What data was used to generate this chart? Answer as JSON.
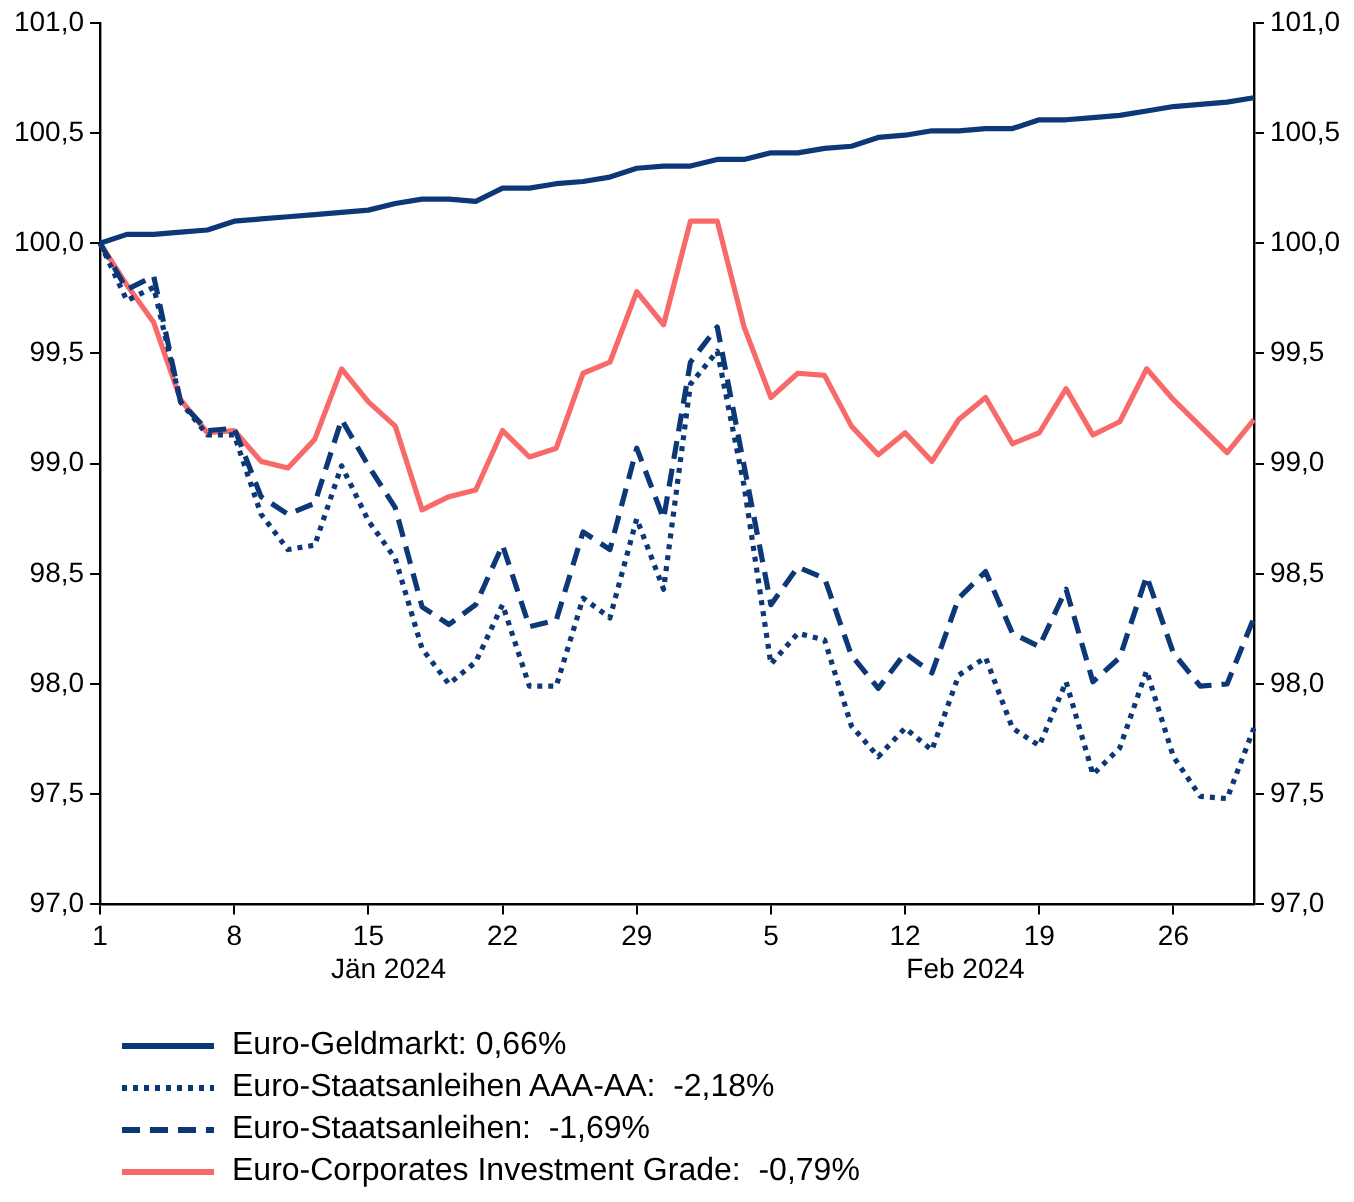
{
  "chart_data": {
    "type": "line",
    "categories": [
      "1",
      null,
      null,
      null,
      null,
      "8",
      null,
      null,
      null,
      null,
      "15",
      null,
      null,
      null,
      null,
      "22",
      null,
      null,
      null,
      null,
      "29",
      null,
      null,
      null,
      null,
      "5",
      null,
      null,
      null,
      null,
      "12",
      null,
      null,
      null,
      null,
      "19",
      null,
      null,
      null,
      null,
      "26",
      null,
      null,
      null
    ],
    "series": [
      {
        "name": "Euro-Geldmarkt: 0,66%",
        "color": "#0d3878",
        "line_style": "solid",
        "values": [
          100.0,
          100.04,
          100.04,
          100.05,
          100.06,
          100.1,
          100.11,
          100.12,
          100.13,
          100.14,
          100.15,
          100.18,
          100.2,
          100.2,
          100.19,
          100.25,
          100.25,
          100.27,
          100.28,
          100.3,
          100.34,
          100.35,
          100.35,
          100.38,
          100.38,
          100.41,
          100.41,
          100.43,
          100.44,
          100.48,
          100.49,
          100.51,
          100.51,
          100.52,
          100.52,
          100.56,
          100.56,
          100.57,
          100.58,
          100.6,
          100.62,
          100.63,
          100.64,
          100.66
        ]
      },
      {
        "name": "Euro-Staatsanleihen AAA-AA:  -2,18%",
        "color": "#0d3878",
        "line_style": "dotted",
        "values": [
          100.0,
          99.74,
          99.8,
          99.28,
          99.13,
          99.13,
          98.77,
          98.61,
          98.63,
          98.99,
          98.74,
          98.57,
          98.16,
          98.0,
          98.1,
          98.36,
          97.99,
          97.99,
          98.39,
          98.3,
          98.75,
          98.43,
          99.36,
          99.51,
          98.9,
          98.09,
          98.23,
          98.2,
          97.81,
          97.67,
          97.8,
          97.7,
          98.04,
          98.12,
          97.8,
          97.72,
          98.01,
          97.59,
          97.71,
          98.06,
          97.67,
          97.49,
          97.48,
          97.8
        ]
      },
      {
        "name": "Euro-Staatsanleihen:  -1,69%",
        "color": "#0d3878",
        "line_style": "dashed",
        "values": [
          100.0,
          99.79,
          99.85,
          99.28,
          99.15,
          99.16,
          98.85,
          98.77,
          98.82,
          99.2,
          98.99,
          98.8,
          98.35,
          98.27,
          98.36,
          98.63,
          98.26,
          98.29,
          98.69,
          98.61,
          99.07,
          98.75,
          99.46,
          99.62,
          98.99,
          98.36,
          98.53,
          98.48,
          98.13,
          97.98,
          98.14,
          98.05,
          98.39,
          98.51,
          98.23,
          98.17,
          98.43,
          98.01,
          98.12,
          98.49,
          98.14,
          97.99,
          98.0,
          98.3
        ]
      },
      {
        "name": "Euro-Corporates Investment Grade:  -0,79%",
        "color": "#f86a6a",
        "line_style": "solid",
        "values": [
          100.0,
          99.81,
          99.64,
          99.29,
          99.14,
          99.15,
          99.01,
          98.98,
          99.11,
          99.43,
          99.28,
          99.17,
          98.79,
          98.85,
          98.88,
          99.15,
          99.03,
          99.07,
          99.41,
          99.46,
          99.78,
          99.63,
          100.1,
          100.1,
          99.62,
          99.3,
          99.41,
          99.4,
          99.17,
          99.04,
          99.14,
          99.01,
          99.2,
          99.3,
          99.09,
          99.14,
          99.34,
          99.13,
          99.19,
          99.43,
          99.29,
          99.17,
          99.05,
          99.2
        ]
      }
    ],
    "ylim": [
      97,
      101
    ],
    "yticks": [
      {
        "value": 97,
        "label": "97,0"
      },
      {
        "value": 97.5,
        "label": "97,5"
      },
      {
        "value": 98,
        "label": "98,0"
      },
      {
        "value": 98.5,
        "label": "98,5"
      },
      {
        "value": 99,
        "label": "99,0"
      },
      {
        "value": 99.5,
        "label": "99,5"
      },
      {
        "value": 100,
        "label": "100,0"
      },
      {
        "value": 100.5,
        "label": "100,5"
      },
      {
        "value": 101,
        "label": "101,0"
      }
    ],
    "y2lim": [
      97,
      101
    ],
    "y2ticks": [
      {
        "value": 97,
        "label": "97,0"
      },
      {
        "value": 97.5,
        "label": "97,5"
      },
      {
        "value": 98,
        "label": "98,0"
      },
      {
        "value": 98.5,
        "label": "98,5"
      },
      {
        "value": 99,
        "label": "99,0"
      },
      {
        "value": 99.5,
        "label": "99,5"
      },
      {
        "value": 100,
        "label": "100,0"
      },
      {
        "value": 100.5,
        "label": "100,5"
      },
      {
        "value": 101,
        "label": "101,0"
      }
    ],
    "annotations": [
      "Jän 2024",
      "Feb 2024"
    ],
    "grid": false,
    "marker": "none",
    "legend": "bottom"
  }
}
